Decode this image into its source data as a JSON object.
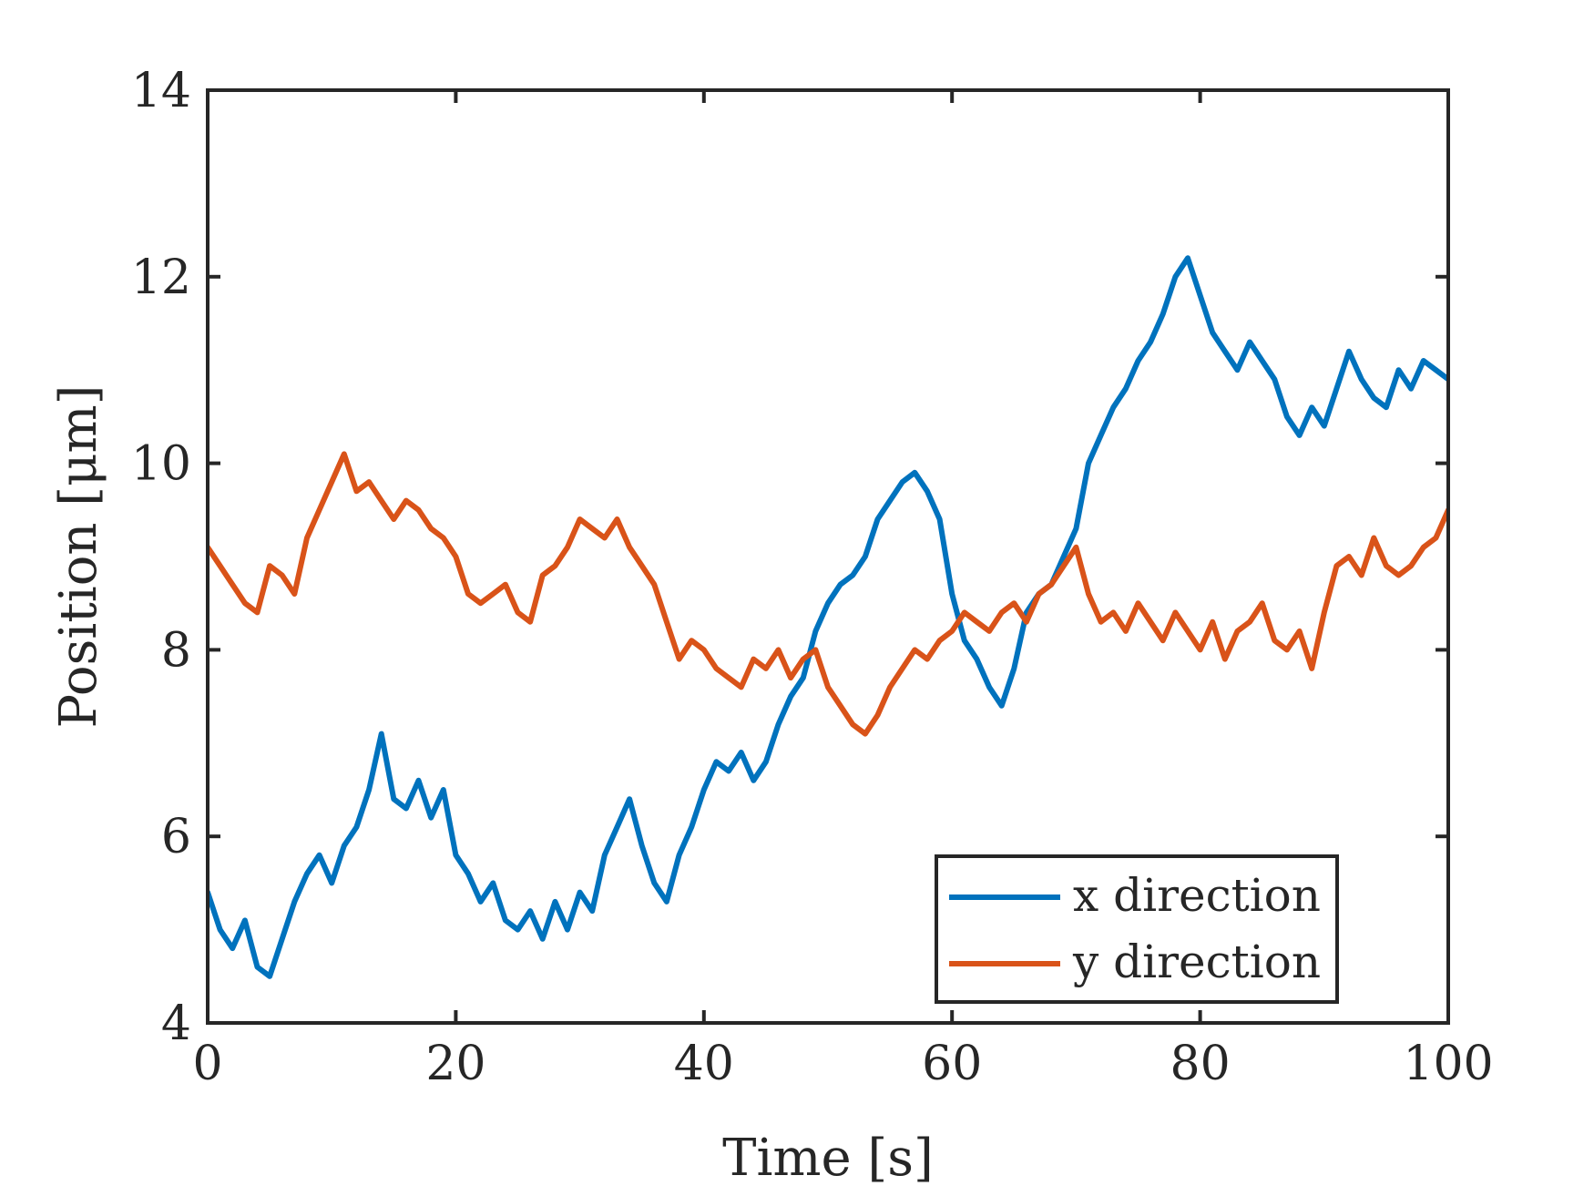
{
  "chart_data": {
    "type": "line",
    "title": "",
    "xlabel": "Time [s]",
    "ylabel": "Position [μm]",
    "xlim": [
      0,
      100
    ],
    "ylim": [
      4,
      14
    ],
    "xticks": [
      0,
      20,
      40,
      60,
      80,
      100
    ],
    "yticks": [
      4,
      6,
      8,
      10,
      12,
      14
    ],
    "xtick_labels": [
      "0",
      "20",
      "40",
      "60",
      "80",
      "100"
    ],
    "ytick_labels": [
      "4",
      "6",
      "8",
      "10",
      "12",
      "14"
    ],
    "grid": false,
    "legend": {
      "placement": "bottom-right"
    },
    "series": [
      {
        "name": "x direction",
        "color": "#0072BD",
        "x": [
          0,
          1,
          2,
          3,
          4,
          5,
          6,
          7,
          8,
          9,
          10,
          11,
          12,
          13,
          14,
          15,
          16,
          17,
          18,
          19,
          20,
          21,
          22,
          23,
          24,
          25,
          26,
          27,
          28,
          29,
          30,
          31,
          32,
          33,
          34,
          35,
          36,
          37,
          38,
          39,
          40,
          41,
          42,
          43,
          44,
          45,
          46,
          47,
          48,
          49,
          50,
          51,
          52,
          53,
          54,
          55,
          56,
          57,
          58,
          59,
          60,
          61,
          62,
          63,
          64,
          65,
          66,
          67,
          68,
          69,
          70,
          71,
          72,
          73,
          74,
          75,
          76,
          77,
          78,
          79,
          80,
          81,
          82,
          83,
          84,
          85,
          86,
          87,
          88,
          89,
          90,
          91,
          92,
          93,
          94,
          95,
          96,
          97,
          98,
          99,
          100
        ],
        "values": [
          5.4,
          5.0,
          4.8,
          5.1,
          4.6,
          4.5,
          4.9,
          5.3,
          5.6,
          5.8,
          5.5,
          5.9,
          6.1,
          6.5,
          7.1,
          6.4,
          6.3,
          6.6,
          6.2,
          6.5,
          5.8,
          5.6,
          5.3,
          5.5,
          5.1,
          5.0,
          5.2,
          4.9,
          5.3,
          5.0,
          5.4,
          5.2,
          5.8,
          6.1,
          6.4,
          5.9,
          5.5,
          5.3,
          5.8,
          6.1,
          6.5,
          6.8,
          6.7,
          6.9,
          6.6,
          6.8,
          7.2,
          7.5,
          7.7,
          8.2,
          8.5,
          8.7,
          8.8,
          9.0,
          9.4,
          9.6,
          9.8,
          9.9,
          9.7,
          9.4,
          8.6,
          8.1,
          7.9,
          7.6,
          7.4,
          7.8,
          8.4,
          8.6,
          8.7,
          9.0,
          9.3,
          10.0,
          10.3,
          10.6,
          10.8,
          11.1,
          11.3,
          11.6,
          12.0,
          12.2,
          11.8,
          11.4,
          11.2,
          11.0,
          11.3,
          11.1,
          10.9,
          10.5,
          10.3,
          10.6,
          10.4,
          10.8,
          11.2,
          10.9,
          10.7,
          10.6,
          11.0,
          10.8,
          11.1,
          11.0,
          10.9
        ]
      },
      {
        "name": "y direction",
        "color": "#D95319",
        "x": [
          0,
          1,
          2,
          3,
          4,
          5,
          6,
          7,
          8,
          9,
          10,
          11,
          12,
          13,
          14,
          15,
          16,
          17,
          18,
          19,
          20,
          21,
          22,
          23,
          24,
          25,
          26,
          27,
          28,
          29,
          30,
          31,
          32,
          33,
          34,
          35,
          36,
          37,
          38,
          39,
          40,
          41,
          42,
          43,
          44,
          45,
          46,
          47,
          48,
          49,
          50,
          51,
          52,
          53,
          54,
          55,
          56,
          57,
          58,
          59,
          60,
          61,
          62,
          63,
          64,
          65,
          66,
          67,
          68,
          69,
          70,
          71,
          72,
          73,
          74,
          75,
          76,
          77,
          78,
          79,
          80,
          81,
          82,
          83,
          84,
          85,
          86,
          87,
          88,
          89,
          90,
          91,
          92,
          93,
          94,
          95,
          96,
          97,
          98,
          99,
          100
        ],
        "values": [
          9.1,
          8.9,
          8.7,
          8.5,
          8.4,
          8.9,
          8.8,
          8.6,
          9.2,
          9.5,
          9.8,
          10.1,
          9.7,
          9.8,
          9.6,
          9.4,
          9.6,
          9.5,
          9.3,
          9.2,
          9.0,
          8.6,
          8.5,
          8.6,
          8.7,
          8.4,
          8.3,
          8.8,
          8.9,
          9.1,
          9.4,
          9.3,
          9.2,
          9.4,
          9.1,
          8.9,
          8.7,
          8.3,
          7.9,
          8.1,
          8.0,
          7.8,
          7.7,
          7.6,
          7.9,
          7.8,
          8.0,
          7.7,
          7.9,
          8.0,
          7.6,
          7.4,
          7.2,
          7.1,
          7.3,
          7.6,
          7.8,
          8.0,
          7.9,
          8.1,
          8.2,
          8.4,
          8.3,
          8.2,
          8.4,
          8.5,
          8.3,
          8.6,
          8.7,
          8.9,
          9.1,
          8.6,
          8.3,
          8.4,
          8.2,
          8.5,
          8.3,
          8.1,
          8.4,
          8.2,
          8.0,
          8.3,
          7.9,
          8.2,
          8.3,
          8.5,
          8.1,
          8.0,
          8.2,
          7.8,
          8.4,
          8.9,
          9.0,
          8.8,
          9.2,
          8.9,
          8.8,
          8.9,
          9.1,
          9.2,
          9.5
        ]
      }
    ]
  }
}
